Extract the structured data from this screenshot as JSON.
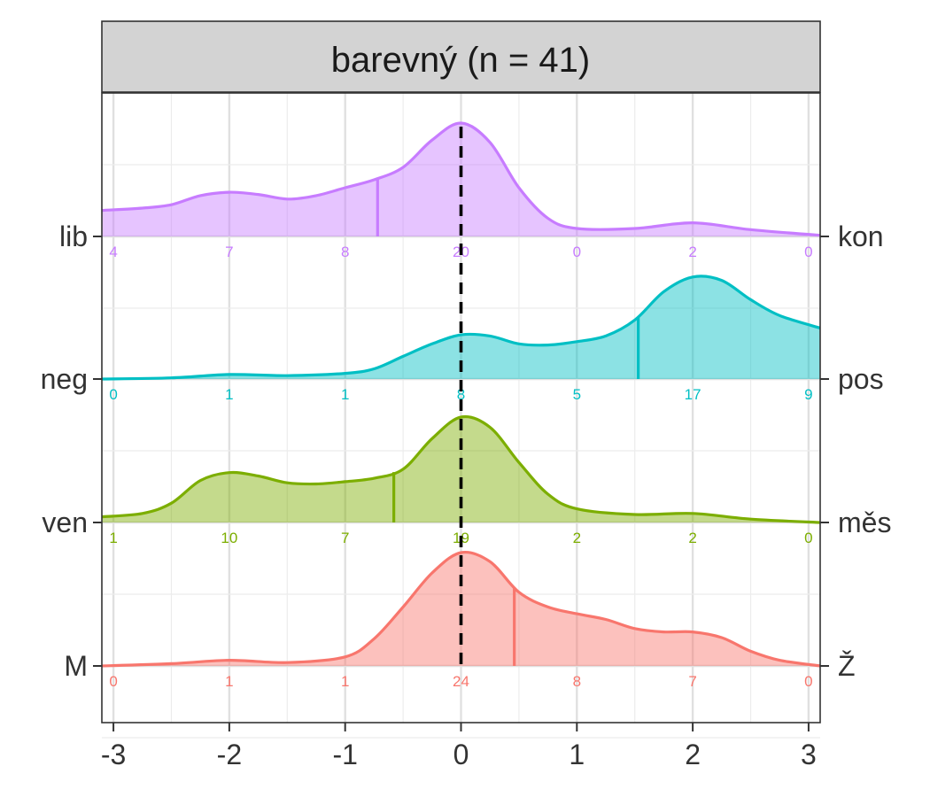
{
  "chart_data": {
    "type": "ridgeline",
    "title": "barevný (n = 41)",
    "xlabel": "",
    "ylabel": "",
    "xlim": [
      -3.1,
      3.1
    ],
    "x_ticks": [
      -3,
      -2,
      -1,
      0,
      1,
      2,
      3
    ],
    "reference_line_x": 0,
    "grid": true,
    "count_positions": [
      -3,
      -2,
      -1,
      0,
      1,
      2,
      3
    ],
    "rows": [
      {
        "left_label": "M",
        "right_label": "Ž",
        "color": "#F8766D",
        "fill": "#F8766D",
        "mean": 0.46,
        "counts": [
          0,
          1,
          1,
          24,
          8,
          7,
          0
        ],
        "density": [
          [
            -3.1,
            0.0
          ],
          [
            -2.5,
            0.02
          ],
          [
            -2.0,
            0.05
          ],
          [
            -1.5,
            0.03
          ],
          [
            -1.0,
            0.08
          ],
          [
            -0.75,
            0.24
          ],
          [
            -0.5,
            0.52
          ],
          [
            -0.25,
            0.82
          ],
          [
            0.0,
            1.0
          ],
          [
            0.25,
            0.92
          ],
          [
            0.5,
            0.65
          ],
          [
            0.75,
            0.52
          ],
          [
            1.0,
            0.46
          ],
          [
            1.25,
            0.41
          ],
          [
            1.5,
            0.33
          ],
          [
            1.75,
            0.3
          ],
          [
            2.0,
            0.3
          ],
          [
            2.25,
            0.25
          ],
          [
            2.5,
            0.13
          ],
          [
            2.75,
            0.05
          ],
          [
            3.1,
            0.0
          ]
        ]
      },
      {
        "left_label": "ven",
        "right_label": "měs",
        "color": "#7CAE00",
        "fill": "#7CAE00",
        "mean": -0.58,
        "counts": [
          1,
          10,
          7,
          19,
          2,
          2,
          0
        ],
        "density": [
          [
            -3.1,
            0.05
          ],
          [
            -2.75,
            0.08
          ],
          [
            -2.5,
            0.17
          ],
          [
            -2.25,
            0.37
          ],
          [
            -2.0,
            0.44
          ],
          [
            -1.75,
            0.41
          ],
          [
            -1.5,
            0.35
          ],
          [
            -1.25,
            0.34
          ],
          [
            -1.0,
            0.36
          ],
          [
            -0.75,
            0.39
          ],
          [
            -0.5,
            0.47
          ],
          [
            -0.25,
            0.74
          ],
          [
            0.0,
            0.93
          ],
          [
            0.25,
            0.84
          ],
          [
            0.5,
            0.53
          ],
          [
            0.75,
            0.25
          ],
          [
            1.0,
            0.12
          ],
          [
            1.5,
            0.07
          ],
          [
            2.0,
            0.08
          ],
          [
            2.5,
            0.03
          ],
          [
            3.1,
            0.0
          ]
        ]
      },
      {
        "left_label": "neg",
        "right_label": "pos",
        "color": "#00BFC4",
        "fill": "#00BFC4",
        "mean": 1.53,
        "counts": [
          0,
          1,
          1,
          8,
          5,
          17,
          9
        ],
        "density": [
          [
            -3.1,
            0.0
          ],
          [
            -2.5,
            0.01
          ],
          [
            -2.0,
            0.04
          ],
          [
            -1.5,
            0.03
          ],
          [
            -1.0,
            0.05
          ],
          [
            -0.75,
            0.09
          ],
          [
            -0.5,
            0.2
          ],
          [
            -0.25,
            0.31
          ],
          [
            0.0,
            0.39
          ],
          [
            0.25,
            0.38
          ],
          [
            0.5,
            0.31
          ],
          [
            0.75,
            0.3
          ],
          [
            1.0,
            0.33
          ],
          [
            1.25,
            0.38
          ],
          [
            1.5,
            0.52
          ],
          [
            1.75,
            0.77
          ],
          [
            2.0,
            0.9
          ],
          [
            2.25,
            0.87
          ],
          [
            2.5,
            0.7
          ],
          [
            2.75,
            0.56
          ],
          [
            3.1,
            0.45
          ]
        ]
      },
      {
        "left_label": "lib",
        "right_label": "kon",
        "color": "#C77CFF",
        "fill": "#C77CFF",
        "mean": -0.72,
        "counts": [
          4,
          7,
          8,
          20,
          0,
          2,
          0
        ],
        "density": [
          [
            -3.1,
            0.23
          ],
          [
            -2.75,
            0.25
          ],
          [
            -2.5,
            0.28
          ],
          [
            -2.25,
            0.36
          ],
          [
            -2.0,
            0.39
          ],
          [
            -1.75,
            0.37
          ],
          [
            -1.5,
            0.33
          ],
          [
            -1.25,
            0.36
          ],
          [
            -1.0,
            0.43
          ],
          [
            -0.75,
            0.5
          ],
          [
            -0.5,
            0.61
          ],
          [
            -0.25,
            0.85
          ],
          [
            0.0,
            1.0
          ],
          [
            0.25,
            0.83
          ],
          [
            0.5,
            0.43
          ],
          [
            0.75,
            0.16
          ],
          [
            1.0,
            0.07
          ],
          [
            1.5,
            0.07
          ],
          [
            2.0,
            0.12
          ],
          [
            2.5,
            0.06
          ],
          [
            3.1,
            0.01
          ]
        ]
      }
    ]
  }
}
